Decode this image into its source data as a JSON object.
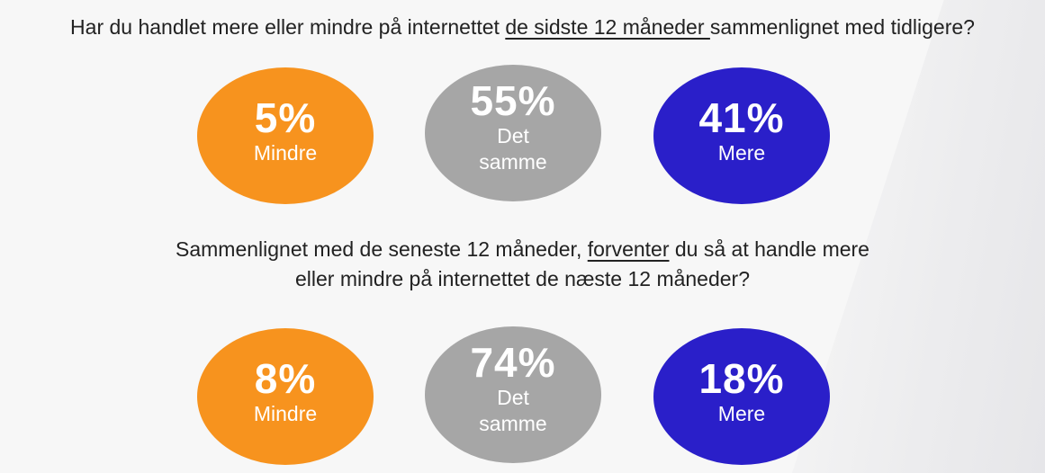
{
  "chart_data": [
    {
      "type": "bubble",
      "question_parts": {
        "pre": "Har du handlet mere eller mindre på internettet ",
        "underlined": "de sidste 12 måneder ",
        "post": "sammenlignet med tidligere?"
      },
      "items": [
        {
          "label": "Mindre",
          "value": 5,
          "value_text": "5%",
          "color": "#f7931e"
        },
        {
          "label": "Det samme",
          "value": 55,
          "value_text": "55%",
          "color": "#a6a6a6"
        },
        {
          "label": "Mere",
          "value": 41,
          "value_text": "41%",
          "color": "#2a1fc9"
        }
      ]
    },
    {
      "type": "bubble",
      "question_parts": {
        "pre": "Sammenlignet med de seneste 12 måneder, ",
        "underlined": "forventer",
        "mid": " du så at handle mere",
        "line2": "eller mindre på internettet de næste 12 måneder?"
      },
      "items": [
        {
          "label": "Mindre",
          "value": 8,
          "value_text": "8%",
          "color": "#f7931e"
        },
        {
          "label": "Det samme",
          "value": 74,
          "value_text": "74%",
          "color": "#a6a6a6"
        },
        {
          "label": "Mere",
          "value": 18,
          "value_text": "18%",
          "color": "#2a1fc9"
        }
      ]
    }
  ]
}
